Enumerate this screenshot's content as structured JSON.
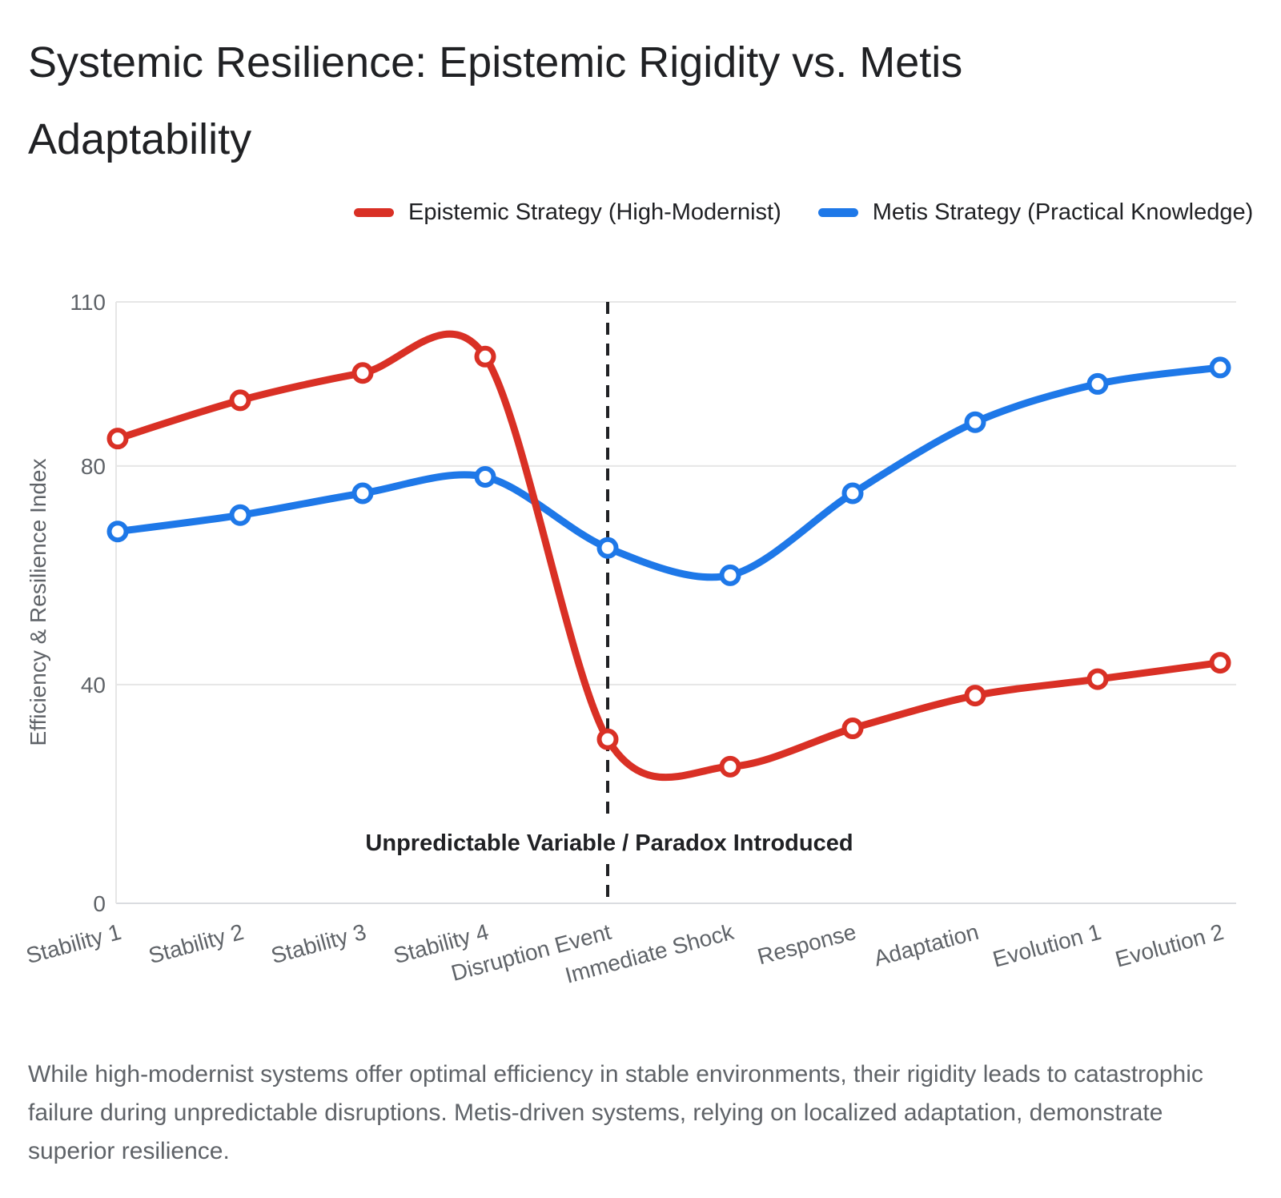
{
  "header": {
    "title": "Systemic Resilience: Epistemic Rigidity vs. Metis Adaptability"
  },
  "chart_data": {
    "type": "line",
    "title": "Systemic Resilience: Epistemic Rigidity vs. Metis Adaptability",
    "categories": [
      "Stability 1",
      "Stability 2",
      "Stability 3",
      "Stability 4",
      "Disruption Event",
      "Immediate Shock",
      "Response",
      "Adaptation",
      "Evolution 1",
      "Evolution 2"
    ],
    "series": [
      {
        "name": "Epistemic Strategy (High-Modernist)",
        "color": "#d93025",
        "values": [
          85,
          92,
          97,
          100,
          30,
          25,
          32,
          38,
          41,
          44
        ]
      },
      {
        "name": "Metis Strategy (Practical Knowledge)",
        "color": "#1e78e8",
        "values": [
          68,
          71,
          75,
          78,
          65,
          60,
          75,
          88,
          95,
          98
        ]
      }
    ],
    "xlabel": "",
    "ylabel": "Efficiency & Resilience Index",
    "ylim": [
      0,
      110
    ],
    "yticks": [
      0,
      40,
      80,
      110
    ],
    "grid": true,
    "legend_position": "top-center",
    "line_smoothing": true,
    "point_style": "open-circle",
    "annotation": {
      "text": "Unpredictable Variable / Paradox Introduced",
      "category": "Disruption Event",
      "line_style": "dashed",
      "color": "#202124"
    }
  },
  "colors": {
    "title_text": "#202124",
    "axis_text": "#5f6368",
    "gridline": "#e6e6e6",
    "axis_line": "#dadce0",
    "annotation_line": "#202124",
    "background": "#ffffff"
  },
  "caption": {
    "text": "While high-modernist systems offer optimal efficiency in stable environments, their rigidity leads to catastrophic failure during unpredictable disruptions. Metis-driven systems, relying on localized adaptation, demonstrate superior resilience."
  }
}
